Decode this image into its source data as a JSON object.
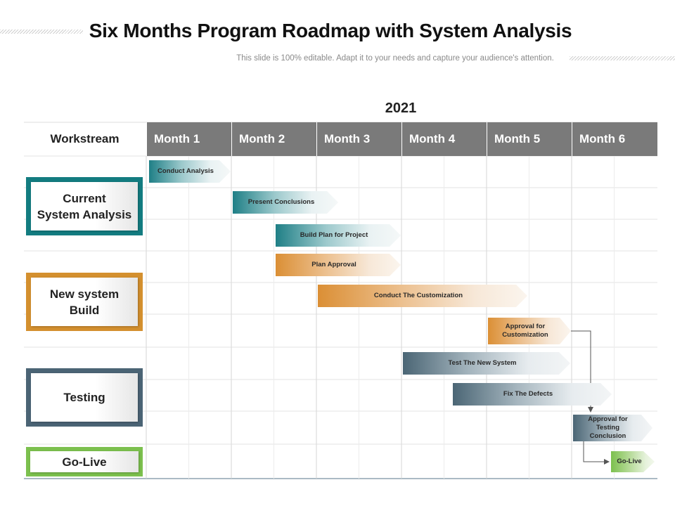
{
  "title": "Six Months Program Roadmap with System Analysis",
  "subtitle": "This slide is 100% editable. Adapt it to your needs and capture your audience's attention.",
  "year": "2021",
  "table": {
    "workstream_header": "Workstream",
    "months": [
      "Month 1",
      "Month 2",
      "Month 3",
      "Month 4",
      "Month 5",
      "Month 6"
    ]
  },
  "workstreams": [
    {
      "lines": [
        "Current",
        "System Analysis"
      ],
      "color": "#137c80"
    },
    {
      "lines": [
        "New system",
        "Build"
      ],
      "color": "#d4902f"
    },
    {
      "lines": [
        "Testing"
      ],
      "color": "#4b6475"
    },
    {
      "lines": [
        "Go-Live"
      ],
      "color": "#7cc04e"
    }
  ],
  "tasks": [
    {
      "label": "Conduct Analysis",
      "workstream": "Current System Analysis"
    },
    {
      "label": "Present Conclusions",
      "workstream": "Current System Analysis"
    },
    {
      "label": "Build Plan for Project",
      "workstream": "Current System Analysis"
    },
    {
      "label": "Plan Approval",
      "workstream": "New system Build"
    },
    {
      "label": "Conduct The Customization",
      "workstream": "New system Build"
    },
    {
      "label": "Approval for Customization",
      "workstream": "New system Build"
    },
    {
      "label": "Test The New System",
      "workstream": "Testing"
    },
    {
      "label": "Fix The Defects",
      "workstream": "Testing"
    },
    {
      "label": "Approval for Testing Conclusion",
      "workstream": "Testing"
    },
    {
      "label": "Go-Live",
      "workstream": "Go-Live"
    }
  ]
}
